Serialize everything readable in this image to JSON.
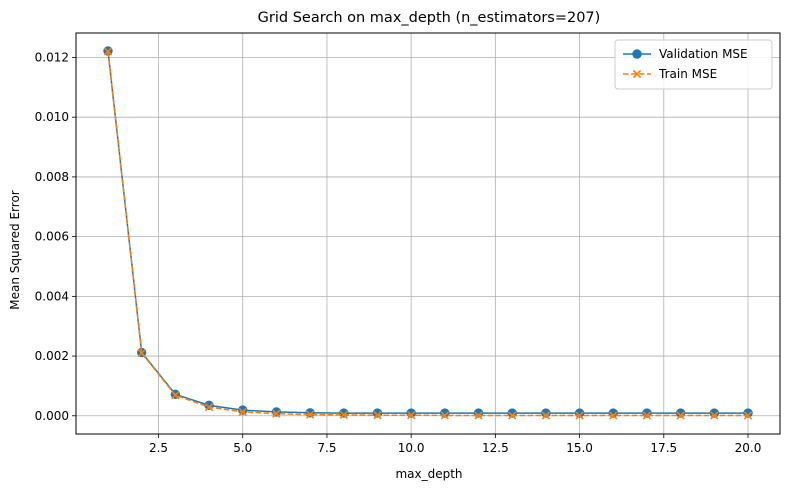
{
  "chart_data": {
    "type": "line",
    "title": "Grid Search on max_depth (n_estimators=207)",
    "xlabel": "max_depth",
    "ylabel": "Mean Squared Error",
    "xlim": [
      0.05,
      20.95
    ],
    "ylim": [
      -0.00061,
      0.01282
    ],
    "x_ticks": [
      2.5,
      5.0,
      7.5,
      10.0,
      12.5,
      15.0,
      17.5,
      20.0
    ],
    "x_tick_labels": [
      "2.5",
      "5.0",
      "7.5",
      "10.0",
      "12.5",
      "15.0",
      "17.5",
      "20.0"
    ],
    "y_ticks": [
      0.0,
      0.002,
      0.004,
      0.006,
      0.008,
      0.01,
      0.012
    ],
    "y_tick_labels": [
      "0.000",
      "0.002",
      "0.004",
      "0.006",
      "0.008",
      "0.010",
      "0.012"
    ],
    "grid": true,
    "legend_position": "top-right",
    "x": [
      1,
      2,
      3,
      4,
      5,
      6,
      7,
      8,
      9,
      10,
      11,
      12,
      13,
      14,
      15,
      16,
      17,
      18,
      19,
      20
    ],
    "series": [
      {
        "name": "Validation MSE",
        "color": "#1f77b4",
        "marker": "circle",
        "line_style": "solid",
        "values": [
          0.01222,
          0.00212,
          0.00072,
          0.00035,
          0.00019,
          0.00013,
          0.0001,
          9e-05,
          9e-05,
          9e-05,
          9e-05,
          9e-05,
          9e-05,
          9e-05,
          9e-05,
          9e-05,
          9e-05,
          9e-05,
          9e-05,
          9e-05
        ]
      },
      {
        "name": "Train MSE",
        "color": "#ff7f0e",
        "marker": "x",
        "line_style": "dashed",
        "values": [
          0.0122,
          0.0021,
          0.00069,
          0.00029,
          0.00013,
          7e-05,
          4e-05,
          3e-05,
          2e-05,
          2e-05,
          1e-05,
          1e-05,
          1e-05,
          1e-05,
          1e-05,
          1e-05,
          1e-05,
          1e-05,
          1e-05,
          1e-05
        ]
      }
    ]
  }
}
